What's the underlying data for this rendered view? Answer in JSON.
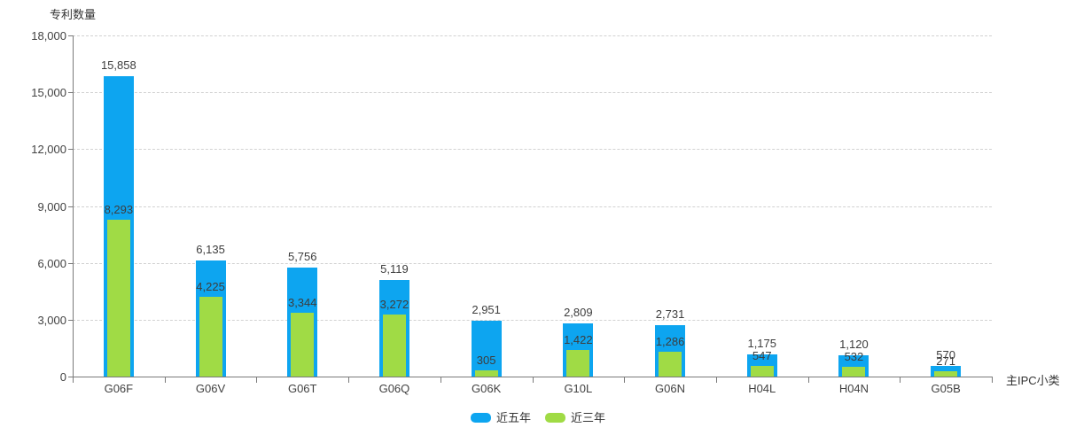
{
  "chart_data": {
    "type": "bar",
    "ylabel": "专利数量",
    "xlabel": "主IPC小类",
    "categories": [
      "G06F",
      "G06V",
      "G06T",
      "G06Q",
      "G06K",
      "G10L",
      "G06N",
      "H04L",
      "H04N",
      "G05B"
    ],
    "series": [
      {
        "name": "近五年",
        "color": "#0DA5F0",
        "values": [
          15858,
          6135,
          5756,
          5119,
          2951,
          2809,
          2731,
          1175,
          1120,
          570
        ]
      },
      {
        "name": "近三年",
        "color": "#A0DB45",
        "values": [
          8293,
          4225,
          3344,
          3272,
          305,
          1422,
          1286,
          547,
          532,
          271
        ]
      }
    ],
    "y_ticks": [
      0,
      3000,
      6000,
      9000,
      12000,
      15000,
      18000
    ],
    "y_tick_labels": [
      "0",
      "3,000",
      "6,000",
      "9,000",
      "12,000",
      "15,000",
      "18,000"
    ],
    "ylim": [
      0,
      18000
    ],
    "grid": "horizontal-dashed",
    "bar_style": "overlay",
    "legend_position": "bottom-center"
  },
  "colors": {
    "background": "#ffffff",
    "gridline": "#d2d2d2",
    "axis_line": "#7a7a7a",
    "tick_text": "#424242",
    "value_label_text": "#3d3d3d",
    "series_last_five_years": "#0DA5F0",
    "series_last_three_years": "#A0DB45"
  }
}
